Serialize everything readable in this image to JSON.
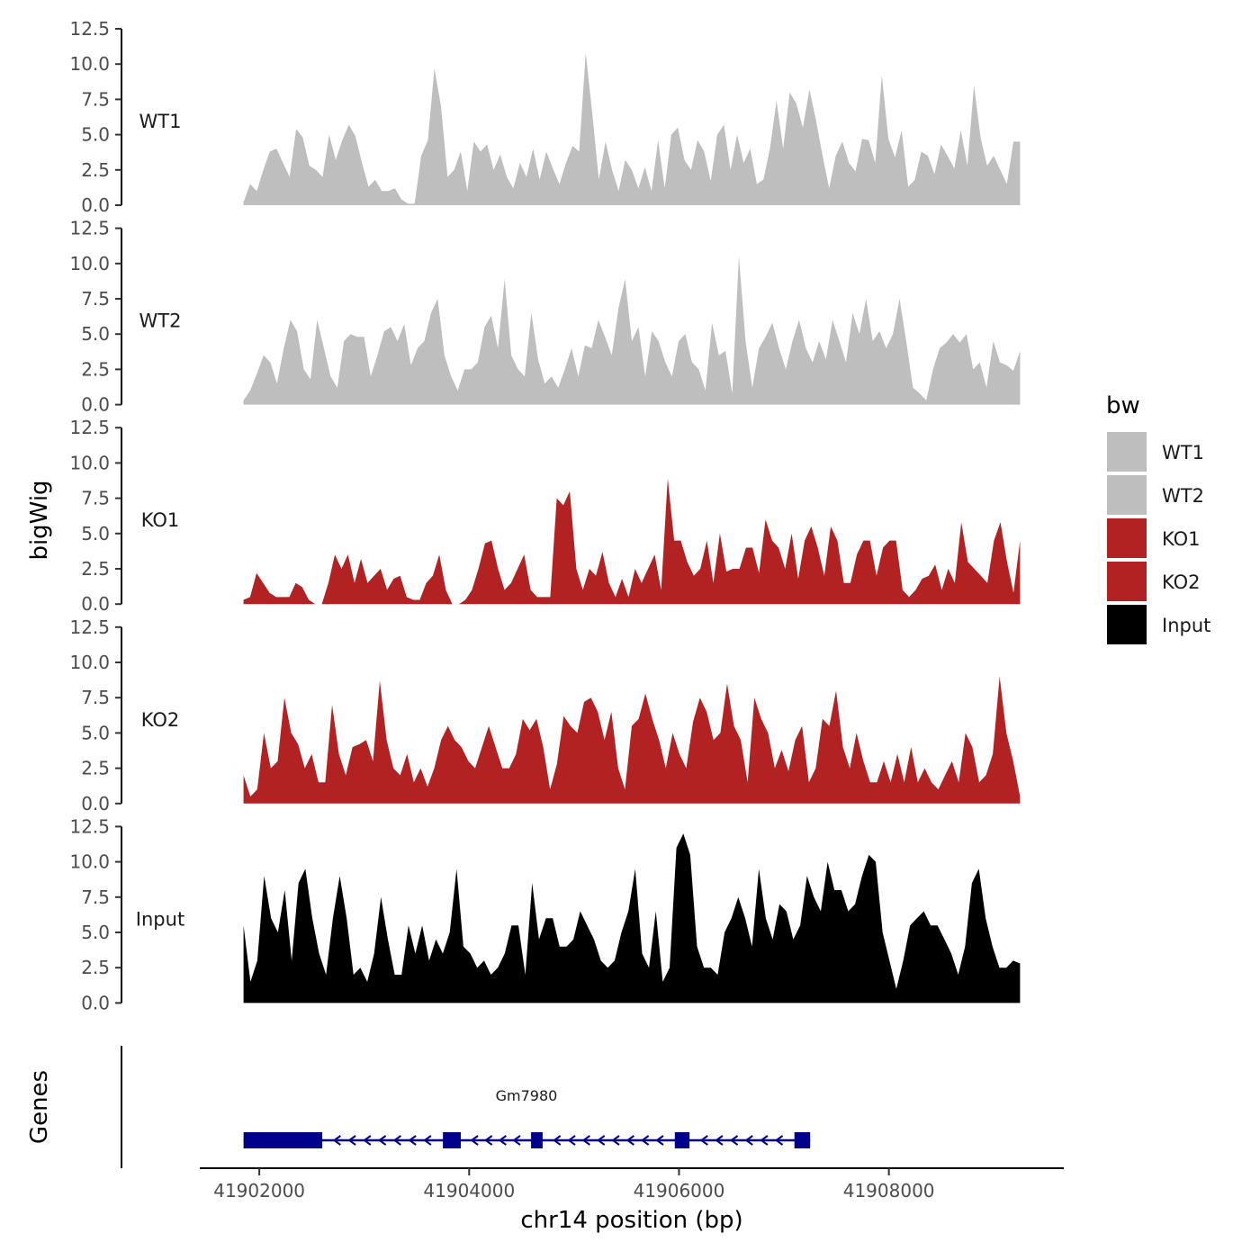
{
  "chart_data": {
    "type": "area",
    "ylabel": "bigWig",
    "xlabel": "chr14 position (bp)",
    "genes_label": "Genes",
    "y_ticks": [
      "0.0",
      "2.5",
      "5.0",
      "7.5",
      "10.0",
      "12.5"
    ],
    "ylim": [
      0,
      12.5
    ],
    "xlim": [
      41901450,
      41909650
    ],
    "region": [
      41901850,
      41909250
    ],
    "x_ticks": [
      {
        "value": 41902000,
        "label": "41902000"
      },
      {
        "value": 41904000,
        "label": "41904000"
      },
      {
        "value": 41906000,
        "label": "41906000"
      },
      {
        "value": 41908000,
        "label": "41908000"
      }
    ],
    "legend": {
      "title": "bw",
      "position": "right",
      "entries": [
        {
          "label": "WT1",
          "color": "#BEBEBE"
        },
        {
          "label": "WT2",
          "color": "#BEBEBE"
        },
        {
          "label": "KO1",
          "color": "#B22222"
        },
        {
          "label": "KO2",
          "color": "#B22222"
        },
        {
          "label": "Input",
          "color": "#000000"
        }
      ]
    },
    "series": [
      {
        "name": "WT1",
        "color": "#BEBEBE",
        "values": [
          0.2,
          1.5,
          1.0,
          2.5,
          3.8,
          4.0,
          3.0,
          2.0,
          5.4,
          4.8,
          2.8,
          2.5,
          2.0,
          5.0,
          3.2,
          4.6,
          5.7,
          4.9,
          3.0,
          1.3,
          1.8,
          1.0,
          1.0,
          1.2,
          0.4,
          0.1,
          0.1,
          3.5,
          4.6,
          9.7,
          7.0,
          2.0,
          2.5,
          3.8,
          1.0,
          4.5,
          3.8,
          4.3,
          2.5,
          3.6,
          2.0,
          1.2,
          3.0,
          2.0,
          4.0,
          1.8,
          3.8,
          2.6,
          1.5,
          3.0,
          4.2,
          3.8,
          10.8,
          6.5,
          1.8,
          4.5,
          2.5,
          1.0,
          3.2,
          2.5,
          1.2,
          2.7,
          1.0,
          4.6,
          1.2,
          5.0,
          5.5,
          3.2,
          2.5,
          4.6,
          3.8,
          1.7,
          5.0,
          5.7,
          2.5,
          5.0,
          3.0,
          4.0,
          1.5,
          1.8,
          4.0,
          7.4,
          4.0,
          8.0,
          7.2,
          5.5,
          8.2,
          6.0,
          3.5,
          1.2,
          3.5,
          4.5,
          3.0,
          2.4,
          4.7,
          4.6,
          3.0,
          9.2,
          4.7,
          3.4,
          5.3,
          1.3,
          1.8,
          3.8,
          3.5,
          2.2,
          4.3,
          3.5,
          2.6,
          5.3,
          2.8,
          8.5,
          4.8,
          2.8,
          3.5,
          2.5,
          1.5,
          4.5,
          4.5
        ]
      },
      {
        "name": "WT2",
        "color": "#BEBEBE",
        "values": [
          0.3,
          1.0,
          2.2,
          3.5,
          3.0,
          1.5,
          4.0,
          6.0,
          5.2,
          2.5,
          1.8,
          6.0,
          4.0,
          2.0,
          1.2,
          4.5,
          5.0,
          4.8,
          4.8,
          2.0,
          3.5,
          5.2,
          5.5,
          4.5,
          5.7,
          2.8,
          4.0,
          4.5,
          6.5,
          7.5,
          3.5,
          2.0,
          1.0,
          2.5,
          2.5,
          3.0,
          5.5,
          6.3,
          4.0,
          8.9,
          3.5,
          2.5,
          2.0,
          6.5,
          3.2,
          1.5,
          2.0,
          1.2,
          2.5,
          4.0,
          2.0,
          4.2,
          4.0,
          6.0,
          4.8,
          3.5,
          6.8,
          8.9,
          4.5,
          5.5,
          2.0,
          5.2,
          4.5,
          3.0,
          2.0,
          4.5,
          5.0,
          3.0,
          2.5,
          1.0,
          5.8,
          3.5,
          3.8,
          0.8,
          10.5,
          4.5,
          1.2,
          4.0,
          4.8,
          5.8,
          4.0,
          2.5,
          4.5,
          6.0,
          4.0,
          3.0,
          4.5,
          3.2,
          6.0,
          4.5,
          3.0,
          6.5,
          5.0,
          7.5,
          4.5,
          5.2,
          4.0,
          5.0,
          7.5,
          4.5,
          1.2,
          0.8,
          0.3,
          2.5,
          4.0,
          4.4,
          5.0,
          4.4,
          5.0,
          2.5,
          3.0,
          1.2,
          4.5,
          3.0,
          2.8,
          2.4,
          3.8
        ]
      },
      {
        "name": "KO1",
        "color": "#B22222",
        "values": [
          0.3,
          0.5,
          2.2,
          1.5,
          0.8,
          0.5,
          0.5,
          0.5,
          1.5,
          1.2,
          0.3,
          0,
          0,
          1.5,
          3.5,
          2.5,
          3.5,
          1.5,
          3.2,
          1.5,
          2.0,
          2.5,
          1.0,
          1.8,
          2.0,
          0.5,
          0.3,
          0.3,
          1.5,
          2.0,
          3.5,
          1.0,
          0,
          0,
          0.3,
          1.0,
          2.5,
          4.3,
          4.5,
          2.5,
          1.0,
          1.5,
          2.5,
          3.5,
          1.0,
          0.5,
          0.5,
          0.5,
          7.5,
          7.0,
          8.0,
          2.5,
          1.0,
          2.5,
          2.0,
          3.7,
          1.5,
          0.5,
          1.8,
          0.5,
          2.5,
          1.5,
          2.5,
          3.5,
          1.0,
          8.9,
          4.5,
          4.5,
          3.0,
          2.0,
          2.5,
          4.5,
          1.5,
          5.0,
          2.3,
          2.5,
          2.5,
          4.0,
          4.0,
          2.2,
          6.0,
          4.5,
          4.0,
          2.5,
          5.0,
          1.8,
          4.5,
          5.5,
          4.0,
          2.0,
          5.5,
          4.5,
          1.5,
          1.5,
          3.5,
          4.5,
          4.5,
          2.0,
          4.0,
          4.5,
          4.5,
          1.0,
          0.5,
          1.0,
          1.8,
          2.0,
          2.8,
          1.0,
          2.5,
          1.5,
          5.8,
          3.0,
          2.5,
          2.0,
          1.5,
          4.5,
          5.8,
          3.0,
          0.8,
          4.5
        ]
      },
      {
        "name": "KO2",
        "color": "#B22222",
        "values": [
          2.0,
          0.5,
          1.0,
          5.0,
          2.5,
          3.0,
          7.5,
          5.0,
          4.2,
          2.5,
          3.5,
          1.5,
          1.5,
          7.0,
          3.5,
          2.0,
          4.0,
          4.2,
          4.5,
          3.0,
          8.7,
          4.5,
          2.5,
          2.0,
          3.5,
          1.5,
          2.5,
          1.2,
          2.5,
          4.5,
          5.5,
          4.5,
          4.0,
          3.0,
          2.5,
          4.0,
          5.5,
          4.0,
          2.5,
          2.5,
          3.5,
          6.0,
          5.2,
          6.0,
          4.0,
          1.0,
          2.8,
          6.2,
          5.5,
          5.0,
          7.2,
          7.5,
          6.5,
          4.5,
          6.5,
          2.5,
          1.0,
          5.5,
          6.0,
          7.8,
          6.0,
          4.5,
          2.5,
          5.0,
          3.5,
          2.5,
          5.8,
          7.5,
          6.5,
          4.5,
          5.0,
          8.5,
          5.5,
          4.5,
          1.5,
          7.5,
          6.0,
          5.0,
          2.5,
          3.8,
          2.3,
          4.5,
          5.5,
          1.5,
          2.5,
          6.0,
          5.5,
          8.0,
          4.0,
          2.5,
          5.0,
          3.0,
          1.5,
          1.5,
          3.0,
          1.5,
          3.5,
          1.5,
          4.0,
          1.5,
          2.5,
          1.5,
          1.0,
          2.0,
          3.0,
          1.5,
          5.0,
          4.0,
          1.5,
          2.0,
          3.5,
          9.0,
          5.0,
          3.0,
          0.5
        ]
      },
      {
        "name": "Input",
        "color": "#000000",
        "values": [
          5.5,
          1.5,
          3.0,
          9.0,
          6.0,
          5.0,
          8.0,
          3.0,
          8.5,
          9.5,
          6.0,
          3.5,
          2.0,
          6.0,
          9.0,
          6.0,
          2.0,
          2.5,
          1.5,
          3.5,
          7.5,
          4.5,
          2.0,
          2.0,
          5.5,
          3.5,
          5.5,
          3.0,
          4.5,
          3.5,
          5.0,
          9.5,
          4.0,
          3.5,
          2.5,
          3.0,
          2.0,
          2.5,
          3.5,
          5.5,
          5.5,
          2.0,
          8.5,
          4.5,
          6.0,
          6.0,
          4.0,
          4.0,
          4.5,
          6.5,
          5.5,
          4.5,
          3.0,
          2.5,
          3.0,
          5.0,
          6.5,
          9.5,
          3.5,
          2.5,
          6.5,
          1.5,
          2.5,
          11.0,
          12.0,
          10.5,
          4.0,
          2.5,
          2.5,
          2.0,
          5.0,
          6.0,
          7.5,
          6.0,
          4.0,
          9.5,
          6.0,
          4.5,
          7.0,
          6.5,
          4.5,
          5.5,
          9.0,
          7.5,
          6.5,
          10.0,
          8.0,
          8.0,
          6.5,
          7.0,
          9.0,
          10.5,
          10.0,
          5.0,
          3.0,
          1.0,
          3.0,
          5.5,
          6.0,
          6.5,
          5.5,
          5.5,
          4.5,
          3.5,
          2.0,
          4.0,
          8.5,
          9.5,
          6.0,
          4.0,
          2.5,
          2.5,
          3.0,
          2.8
        ]
      }
    ],
    "gene_track": {
      "gene_name": "Gm7980",
      "color": "#00008B",
      "start": 41901850,
      "end": 41907250,
      "strand": "-",
      "exons": [
        [
          41901850,
          41902600
        ],
        [
          41903750,
          41903920
        ],
        [
          41904590,
          41904700
        ],
        [
          41905960,
          41906100
        ],
        [
          41907100,
          41907250
        ]
      ]
    }
  }
}
